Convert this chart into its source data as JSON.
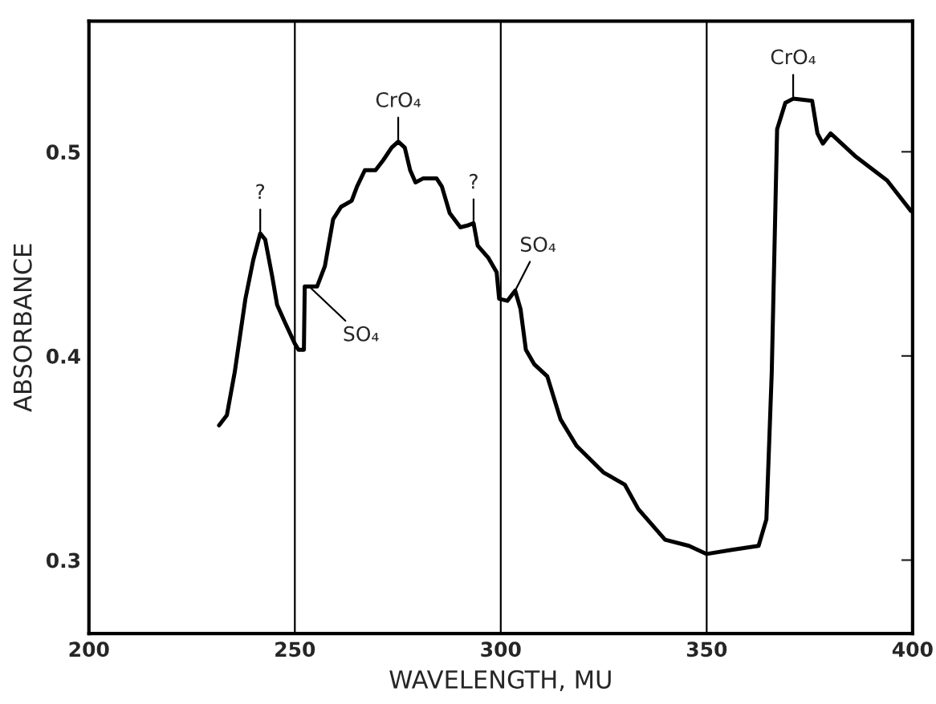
{
  "chart_data": {
    "type": "line",
    "xlabel": "WAVELENGTH, MU",
    "ylabel": "ABSORBANCE",
    "xlim": [
      200,
      400
    ],
    "ylim": [
      0.264,
      0.564
    ],
    "xticks": [
      200,
      250,
      300,
      350,
      400
    ],
    "yticks": [
      0.3,
      0.4,
      0.5
    ],
    "grid": "x",
    "marker": "none",
    "line_style": "solid",
    "series": [
      {
        "color": "#000000",
        "x": [
          231.6,
          233.5,
          235.4,
          238.0,
          239.9,
          241.6,
          242.8,
          244.5,
          245.7,
          247.7,
          250,
          250.9,
          252.2,
          252.4,
          253.5,
          255.4,
          257.3,
          259.3,
          261.2,
          263.8,
          265.1,
          267.0,
          269.6,
          271.5,
          273.5,
          275.1,
          276.7,
          278.0,
          279.3,
          281.2,
          284.4,
          285.7,
          287.6,
          290.2,
          292.1,
          293.4,
          294.4,
          297.0,
          299.0,
          299.6,
          301.6,
          303.5,
          304.8,
          306.1,
          308.1,
          311.3,
          314.5,
          318.4,
          324.9,
          330.1,
          333.4,
          339.9,
          345.7,
          350,
          356.1,
          362.6,
          364.5,
          365.8,
          367.1,
          369.1,
          371.0,
          375.6,
          376.9,
          378.2,
          380.1,
          386.0,
          393.8,
          399.6
        ],
        "values": [
          0.366,
          0.371,
          0.392,
          0.428,
          0.447,
          0.46,
          0.457,
          0.439,
          0.425,
          0.416,
          0.406,
          0.403,
          0.403,
          0.434,
          0.434,
          0.434,
          0.444,
          0.467,
          0.473,
          0.476,
          0.483,
          0.491,
          0.491,
          0.496,
          0.502,
          0.505,
          0.502,
          0.491,
          0.485,
          0.487,
          0.487,
          0.483,
          0.47,
          0.463,
          0.464,
          0.465,
          0.454,
          0.448,
          0.441,
          0.428,
          0.427,
          0.432,
          0.423,
          0.403,
          0.396,
          0.39,
          0.369,
          0.356,
          0.343,
          0.337,
          0.325,
          0.31,
          0.307,
          0.303,
          0.305,
          0.307,
          0.32,
          0.392,
          0.511,
          0.524,
          0.526,
          0.525,
          0.509,
          0.504,
          0.509,
          0.498,
          0.486,
          0.471
        ]
      }
    ],
    "annotations": [
      {
        "text": "?",
        "x": 241.6,
        "y": 0.46
      },
      {
        "text": "SO₄",
        "x": 253.5,
        "y": 0.434
      },
      {
        "text": "CrO₄",
        "x": 275.1,
        "y": 0.505
      },
      {
        "text": "?",
        "x": 293.4,
        "y": 0.465
      },
      {
        "text": "SO₄",
        "x": 303.5,
        "y": 0.432
      },
      {
        "text": "CrO₄",
        "x": 371.0,
        "y": 0.526
      }
    ]
  }
}
